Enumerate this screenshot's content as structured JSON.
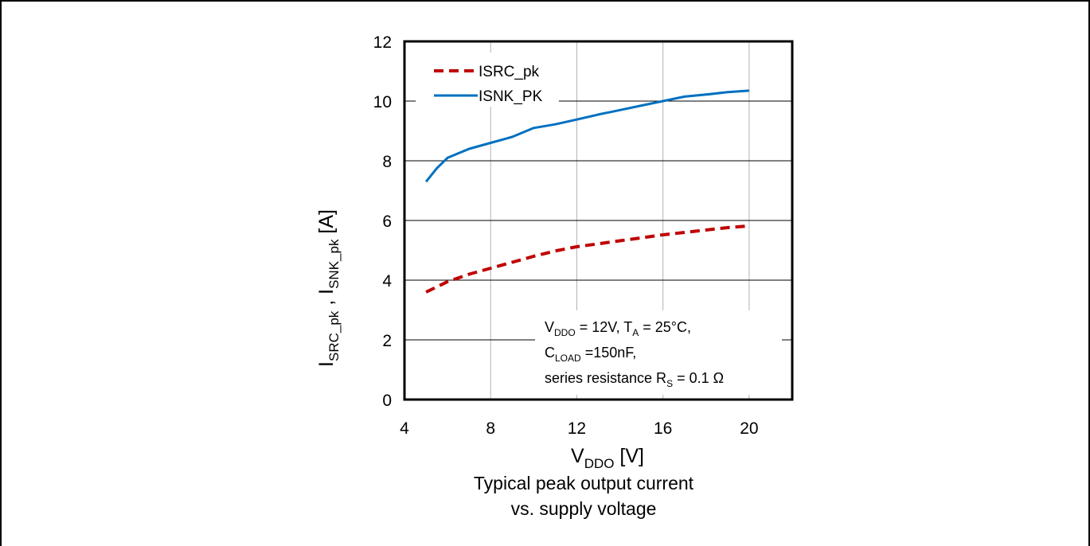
{
  "chart_data": {
    "type": "line",
    "title": "",
    "xlabel": {
      "main": "V",
      "sub": "DDO",
      "tail": " [V]"
    },
    "ylabel": {
      "part1_main": "I",
      "part1_sub": "SRC_pk",
      "sep": " , ",
      "part2_main": "I",
      "part2_sub": "SNK_pk",
      "tail": " [A]"
    },
    "xlim": [
      4,
      22
    ],
    "ylim": [
      0,
      12
    ],
    "xticks": [
      "4",
      "8",
      "12",
      "16",
      "20"
    ],
    "yticks": [
      "0",
      "2",
      "4",
      "6",
      "8",
      "10",
      "12"
    ],
    "grid": true,
    "legend_position": "top-left",
    "series": [
      {
        "name": "ISRC_pk",
        "color": "#c00000",
        "style": "dashed",
        "x": [
          5,
          6,
          7,
          8,
          9,
          10,
          11,
          12,
          13,
          14,
          15,
          16,
          17,
          18,
          19,
          20
        ],
        "y": [
          3.6,
          3.95,
          4.2,
          4.4,
          4.6,
          4.8,
          4.98,
          5.12,
          5.22,
          5.32,
          5.42,
          5.52,
          5.6,
          5.68,
          5.76,
          5.82
        ]
      },
      {
        "name": "ISNK_PK",
        "color": "#0070c0",
        "style": "solid",
        "x": [
          5,
          5.5,
          6,
          7,
          8,
          9,
          10,
          11,
          12,
          13,
          14,
          15,
          16,
          17,
          18,
          19,
          20
        ],
        "y": [
          7.3,
          7.75,
          8.1,
          8.4,
          8.6,
          8.8,
          9.1,
          9.22,
          9.38,
          9.55,
          9.7,
          9.85,
          10.0,
          10.15,
          10.22,
          10.3,
          10.35
        ]
      }
    ],
    "annotations": {
      "line1": {
        "a_main": "V",
        "a_sub": "DDO",
        "a_tail": " = 12V, T",
        "b_sub": "A",
        "b_tail": " = 25°C,"
      },
      "line2": {
        "main": "C",
        "sub": "LOAD",
        "tail": " =150nF,"
      },
      "line3": {
        "main": "series resistance R",
        "sub": "S",
        "tail": " = 0.1 Ω"
      }
    },
    "caption": [
      "Typical peak output current",
      "vs. supply voltage"
    ]
  }
}
